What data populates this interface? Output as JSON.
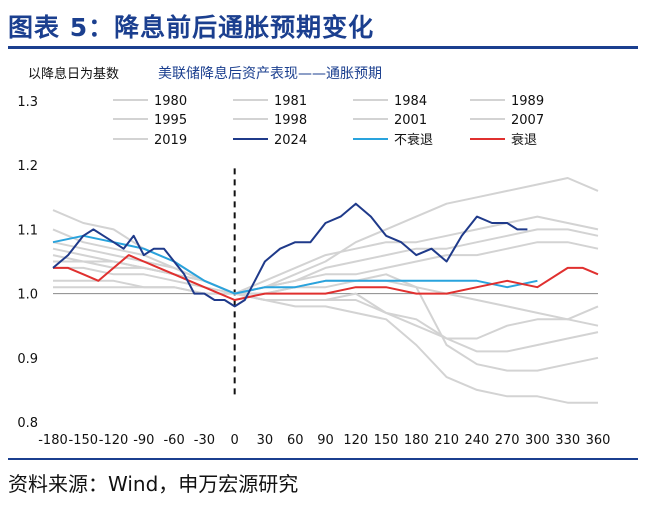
{
  "figure": {
    "title": "图表 5：降息前后通胀预期变化",
    "source": "资料来源：Wind，申万宏源研究"
  },
  "chart_data": {
    "type": "line",
    "title": "美联储降息后资产表现——通胀预期",
    "ylabel": "以降息日为基数",
    "xlabel": "",
    "xlim": [
      -180,
      360
    ],
    "ylim": [
      0.8,
      1.3
    ],
    "yticks": [
      0.8,
      0.9,
      1.0,
      1.1,
      1.2,
      1.3
    ],
    "ytick_labels": [
      "0.8",
      "0.9",
      "1.0",
      "1.1",
      "1.2",
      "1.3"
    ],
    "xticks": [
      -180,
      -150,
      -120,
      -90,
      -60,
      -30,
      0,
      30,
      60,
      90,
      120,
      150,
      180,
      210,
      240,
      270,
      300,
      330,
      360
    ],
    "xtick_labels": [
      "-180",
      "-150",
      "-120",
      "-90",
      "-60",
      "-30",
      "0",
      "30",
      "60",
      "90",
      "120",
      "150",
      "180",
      "210",
      "240",
      "270",
      "300",
      "330",
      "360"
    ],
    "vline_x": 0,
    "legend_position": "top",
    "colors": {
      "history": "#d3d3d3",
      "y2024": "#1f3a8a",
      "no_recession": "#29a3dd",
      "recession": "#e0302f"
    },
    "series": [
      {
        "name": "1980",
        "role": "history",
        "x": [
          -180,
          -150,
          -120,
          -90,
          -60,
          -30,
          0,
          30,
          60,
          90,
          120,
          150,
          180,
          210,
          240,
          270,
          300,
          330,
          360
        ],
        "values": [
          1.13,
          1.11,
          1.1,
          1.07,
          1.05,
          1.02,
          1.0,
          1.01,
          1.03,
          1.05,
          1.08,
          1.1,
          1.12,
          1.14,
          1.15,
          1.16,
          1.17,
          1.18,
          1.16
        ]
      },
      {
        "name": "1981",
        "role": "history",
        "x": [
          -180,
          -150,
          -120,
          -90,
          -60,
          -30,
          0,
          30,
          60,
          90,
          120,
          150,
          180,
          210,
          240,
          270,
          300,
          330,
          360
        ],
        "values": [
          1.1,
          1.08,
          1.07,
          1.06,
          1.04,
          1.02,
          1.0,
          0.99,
          0.98,
          0.98,
          0.97,
          0.96,
          0.92,
          0.87,
          0.85,
          0.84,
          0.84,
          0.83,
          0.83
        ]
      },
      {
        "name": "1984",
        "role": "history",
        "x": [
          -180,
          -150,
          -120,
          -90,
          -60,
          -30,
          0,
          30,
          60,
          90,
          120,
          150,
          180,
          210,
          240,
          270,
          300,
          330,
          360
        ],
        "values": [
          1.06,
          1.05,
          1.05,
          1.04,
          1.03,
          1.02,
          1.0,
          0.99,
          0.99,
          0.99,
          0.99,
          0.97,
          0.95,
          0.93,
          0.93,
          0.95,
          0.96,
          0.96,
          0.95
        ]
      },
      {
        "name": "1989",
        "role": "history",
        "x": [
          -180,
          -150,
          -120,
          -90,
          -60,
          -30,
          0,
          30,
          60,
          90,
          120,
          150,
          180,
          210,
          240,
          270,
          300,
          330,
          360
        ],
        "values": [
          1.08,
          1.07,
          1.06,
          1.05,
          1.04,
          1.02,
          1.0,
          1.02,
          1.04,
          1.06,
          1.07,
          1.08,
          1.08,
          1.09,
          1.1,
          1.11,
          1.12,
          1.11,
          1.1
        ]
      },
      {
        "name": "1995",
        "role": "history",
        "x": [
          -180,
          -150,
          -120,
          -90,
          -60,
          -30,
          0,
          30,
          60,
          90,
          120,
          150,
          180,
          210,
          240,
          270,
          300,
          330,
          360
        ],
        "values": [
          1.04,
          1.04,
          1.03,
          1.03,
          1.02,
          1.01,
          1.0,
          1.01,
          1.02,
          1.04,
          1.05,
          1.06,
          1.07,
          1.07,
          1.08,
          1.09,
          1.1,
          1.1,
          1.09
        ]
      },
      {
        "name": "1998",
        "role": "history",
        "x": [
          -180,
          -150,
          -120,
          -90,
          -60,
          -30,
          0,
          30,
          60,
          90,
          120,
          150,
          180,
          210,
          240,
          270,
          300,
          330,
          360
        ],
        "values": [
          1.02,
          1.02,
          1.02,
          1.01,
          1.01,
          1.0,
          1.0,
          1.01,
          1.02,
          1.03,
          1.03,
          1.04,
          1.05,
          1.06,
          1.06,
          1.07,
          1.08,
          1.08,
          1.07
        ]
      },
      {
        "name": "2001",
        "role": "history",
        "x": [
          -180,
          -150,
          -120,
          -90,
          -60,
          -30,
          0,
          30,
          60,
          90,
          120,
          150,
          180,
          210,
          240,
          270,
          300,
          330,
          360
        ],
        "values": [
          1.07,
          1.06,
          1.05,
          1.04,
          1.03,
          1.02,
          1.0,
          0.99,
          0.99,
          0.99,
          1.0,
          0.97,
          0.96,
          0.93,
          0.91,
          0.91,
          0.92,
          0.93,
          0.94
        ]
      },
      {
        "name": "2007",
        "role": "history",
        "x": [
          -180,
          -150,
          -120,
          -90,
          -60,
          -30,
          0,
          30,
          60,
          90,
          120,
          150,
          180,
          210,
          240,
          270,
          300,
          330,
          360
        ],
        "values": [
          1.01,
          1.01,
          1.01,
          1.01,
          1.01,
          1.0,
          1.0,
          1.0,
          1.01,
          1.02,
          1.02,
          1.03,
          1.01,
          0.92,
          0.89,
          0.88,
          0.88,
          0.89,
          0.9
        ]
      },
      {
        "name": "2019",
        "role": "history",
        "x": [
          -180,
          -150,
          -120,
          -90,
          -60,
          -30,
          0,
          30,
          60,
          90,
          120,
          150,
          180,
          210,
          240,
          270,
          300,
          330,
          360
        ],
        "values": [
          1.05,
          1.05,
          1.04,
          1.04,
          1.03,
          1.02,
          1.0,
          1.0,
          1.01,
          1.01,
          1.02,
          1.02,
          1.01,
          1.0,
          0.99,
          0.98,
          0.97,
          0.96,
          0.98
        ]
      },
      {
        "name": "2024",
        "role": "y2024",
        "x": [
          -180,
          -165,
          -150,
          -140,
          -130,
          -120,
          -110,
          -100,
          -90,
          -80,
          -70,
          -60,
          -50,
          -40,
          -30,
          -20,
          -10,
          0,
          10,
          20,
          30,
          45,
          60,
          75,
          90,
          105,
          120,
          135,
          150,
          165,
          180,
          195,
          210,
          225,
          240,
          255,
          270,
          280,
          290
        ],
        "values": [
          1.04,
          1.06,
          1.09,
          1.1,
          1.09,
          1.08,
          1.07,
          1.09,
          1.06,
          1.07,
          1.07,
          1.05,
          1.03,
          1.0,
          1.0,
          0.99,
          0.99,
          0.98,
          0.99,
          1.02,
          1.05,
          1.07,
          1.08,
          1.08,
          1.11,
          1.12,
          1.14,
          1.12,
          1.09,
          1.08,
          1.06,
          1.07,
          1.05,
          1.09,
          1.12,
          1.11,
          1.11,
          1.1,
          1.1
        ]
      },
      {
        "name": "不衰退",
        "role": "no_recession",
        "x": [
          -180,
          -150,
          -120,
          -90,
          -60,
          -30,
          0,
          30,
          60,
          90,
          120,
          150,
          180,
          210,
          240,
          270,
          300
        ],
        "values": [
          1.08,
          1.09,
          1.08,
          1.07,
          1.05,
          1.02,
          1.0,
          1.01,
          1.01,
          1.02,
          1.02,
          1.02,
          1.02,
          1.02,
          1.02,
          1.01,
          1.02
        ]
      },
      {
        "name": "衰退",
        "role": "recession",
        "x": [
          -180,
          -165,
          -150,
          -135,
          -120,
          -105,
          -90,
          -75,
          -60,
          -45,
          -30,
          -15,
          0,
          30,
          60,
          90,
          120,
          150,
          180,
          210,
          240,
          270,
          300,
          330,
          345,
          360
        ],
        "values": [
          1.04,
          1.04,
          1.03,
          1.02,
          1.04,
          1.06,
          1.05,
          1.04,
          1.03,
          1.02,
          1.01,
          1.0,
          0.99,
          1.0,
          1.0,
          1.0,
          1.01,
          1.01,
          1.0,
          1.0,
          1.01,
          1.02,
          1.01,
          1.04,
          1.04,
          1.03
        ]
      }
    ]
  }
}
